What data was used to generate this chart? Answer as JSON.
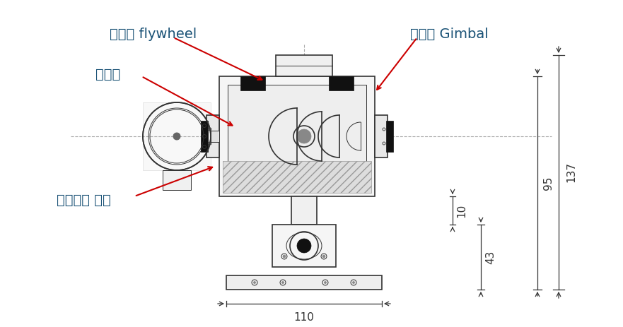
{
  "bg_color": "#ffffff",
  "line_color": "#333333",
  "dark_color": "#111111",
  "hatch_color": "#888888",
  "label_color": "#1a5276",
  "arrow_color": "#cc0000",
  "dim_color": "#333333",
  "labels": {
    "flywheel": "자이로 flywheel",
    "bearing": "베어링",
    "gimbal": "자이로 Gimbal",
    "turbine": "에어터빈 형상"
  },
  "dim_texts": {
    "d137": "137",
    "d95": "95",
    "d43": "43",
    "d10": "10",
    "d110": "110"
  },
  "label_fontsize": 14,
  "dim_fontsize": 11
}
